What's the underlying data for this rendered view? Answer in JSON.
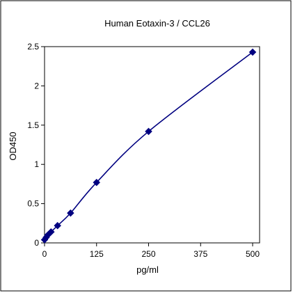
{
  "chart_data": {
    "type": "line",
    "title": "Human Eotaxin-3 / CCL26",
    "xlabel": "pg/ml",
    "ylabel": "OD450",
    "xlim": [
      0,
      500
    ],
    "ylim": [
      0,
      2.5
    ],
    "x_ticks": [
      0,
      125,
      250,
      375,
      500
    ],
    "x_tick_labels": [
      "0",
      "125",
      "250",
      "375",
      "500"
    ],
    "y_ticks": [
      0,
      0.5,
      1,
      1.5,
      2,
      2.5
    ],
    "y_tick_labels": [
      "0",
      "0.5",
      "1",
      "1.5",
      "2",
      "2.5"
    ],
    "grid": false,
    "legend": "none",
    "series": [
      {
        "x": [
          0,
          3.9,
          7.8,
          15.6,
          31.25,
          62.5,
          125,
          250,
          500
        ],
        "y": [
          0.04,
          0.07,
          0.1,
          0.14,
          0.22,
          0.38,
          0.77,
          1.42,
          2.43
        ],
        "color": "#000080",
        "marker": "diamond",
        "smooth": true
      }
    ]
  }
}
